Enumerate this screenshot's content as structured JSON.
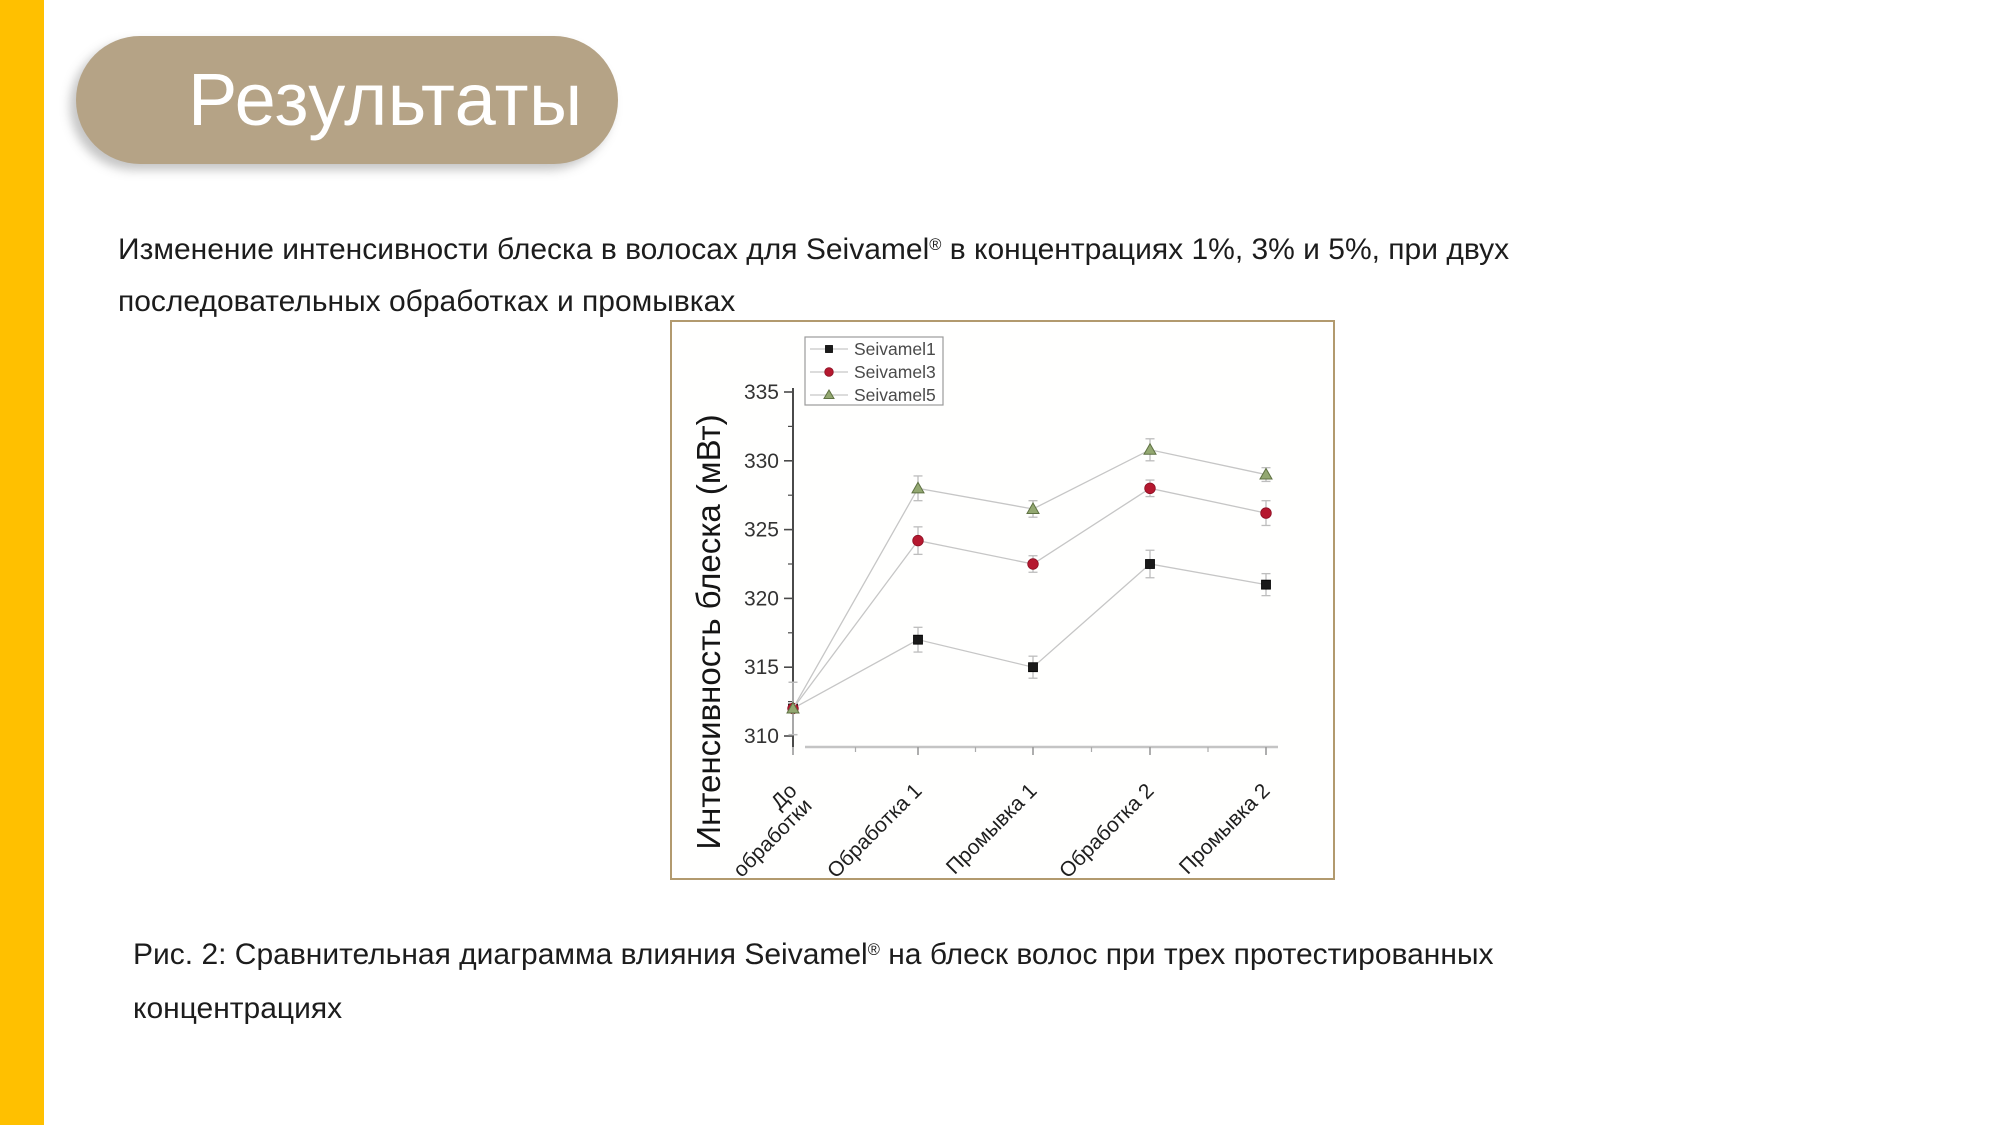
{
  "slide": {
    "accent_bar_color": "#FFC000",
    "title": "Результаты",
    "title_pill_color": "#B5A386",
    "body_text": "Изменение интенсивности блеска в волосах для Seivamel®  в концентрациях 1%, 3% и 5%, при двух\nпоследовательных обработках и промывках",
    "caption": "Рис. 2: Сравнительная диаграмма влияния Seivamel® на блеск волос при трех протестированных\nконцентрациях"
  },
  "chart_data": {
    "type": "line",
    "title": "",
    "xlabel": "",
    "ylabel": "Интенсивность блеска (мВт)",
    "ylim": [
      310,
      335
    ],
    "yticks": [
      310,
      315,
      320,
      325,
      330,
      335
    ],
    "minor_ytick_step": 2.5,
    "grid": false,
    "legend_position": "top-left-inside",
    "frame_border_color": "#b29a6e",
    "axis_color": "#4a4a4a",
    "x_axis_color": "#c4c4c4",
    "line_color": "#c6c6c6",
    "error_bar_color": "#bdbdbd",
    "tick_label_color": "#333333",
    "legend_text_color": "#4a4a4a",
    "categories": [
      "До\nобработки",
      "Обработка 1",
      "Промывка 1",
      "Обработка 2",
      "Промывка 2"
    ],
    "series": [
      {
        "name": "Seivamel1",
        "marker": "square",
        "color": "#1a1a1a",
        "edge": "#000000",
        "values": [
          312,
          317,
          315,
          322.5,
          321
        ],
        "errors": [
          1.9,
          0.9,
          0.8,
          1.0,
          0.8
        ]
      },
      {
        "name": "Seivamel3",
        "marker": "circle",
        "color": "#b5182f",
        "edge": "#8d1024",
        "values": [
          312,
          324.2,
          322.5,
          328,
          326.2
        ],
        "errors": [
          1.9,
          1.0,
          0.6,
          0.6,
          0.9
        ]
      },
      {
        "name": "Seivamel5",
        "marker": "triangle",
        "color": "#93a871",
        "edge": "#5f7243",
        "values": [
          312,
          328,
          326.5,
          330.8,
          329
        ],
        "errors": [
          1.9,
          0.9,
          0.6,
          0.8,
          0.5
        ]
      }
    ]
  }
}
